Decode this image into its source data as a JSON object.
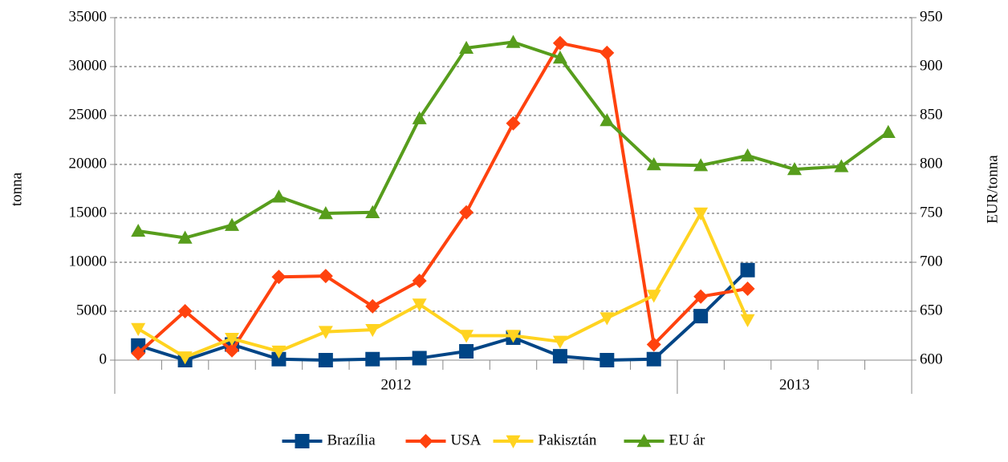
{
  "chart_data": {
    "type": "line",
    "categories": [
      null,
      null,
      null,
      null,
      null,
      null,
      null,
      null,
      null,
      null,
      null,
      null,
      null,
      null,
      null,
      null,
      null
    ],
    "category_groups": [
      {
        "label": "2012",
        "span": 12
      },
      {
        "label": "2013",
        "span": 5
      }
    ],
    "y_label": "tonna",
    "y2_label": "EUR/tonna",
    "ylim": [
      0,
      35000
    ],
    "yticks": [
      0,
      5000,
      10000,
      15000,
      20000,
      25000,
      30000,
      35000
    ],
    "y2lim": [
      600,
      950
    ],
    "y2ticks": [
      600,
      650,
      700,
      750,
      800,
      850,
      900,
      950
    ],
    "grid": true,
    "legend": "bottom",
    "series": [
      {
        "name": "Brazília",
        "color": "#004586",
        "marker": "square",
        "values": [
          1500,
          0,
          1600,
          100,
          0,
          100,
          200,
          900,
          2300,
          400,
          0,
          100,
          4500,
          9200,
          null,
          null,
          null
        ]
      },
      {
        "name": "USA",
        "color": "#ff420e",
        "marker": "diamond",
        "values": [
          700,
          5000,
          1000,
          8500,
          8600,
          5500,
          8100,
          15100,
          24200,
          32400,
          31400,
          1600,
          6500,
          7300,
          null,
          null,
          null
        ]
      },
      {
        "name": "Pakisztán",
        "color": "#ffd320",
        "marker": "triangle-down",
        "values": [
          3200,
          300,
          2200,
          900,
          2900,
          3100,
          5700,
          2500,
          2500,
          1900,
          4300,
          6600,
          15000,
          4100,
          null,
          null,
          null
        ]
      },
      {
        "name": "EU ár",
        "color": "#579d1c",
        "marker": "triangle-up",
        "axis": "y2",
        "values": [
          732,
          725,
          738,
          767,
          750,
          751,
          847,
          919,
          925,
          909,
          845,
          800,
          799,
          809,
          795,
          798,
          833
        ]
      }
    ]
  }
}
